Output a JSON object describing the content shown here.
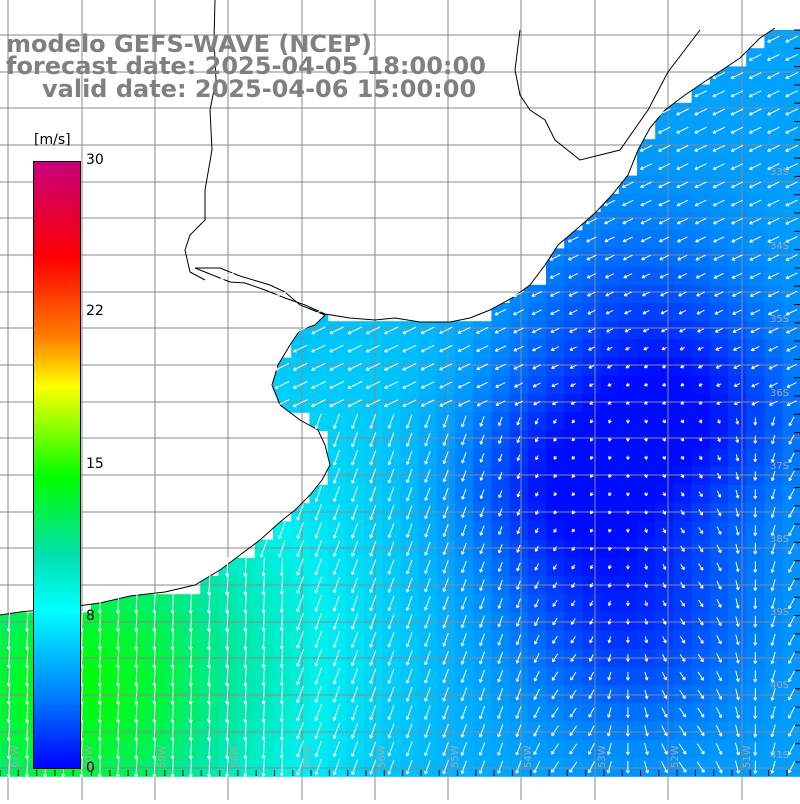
{
  "title": {
    "line1": "modelo GEFS-WAVE (NCEP)",
    "line2": "forecast date: 2025-04-05 18:00:00",
    "line3": "valid date: 2025-04-06 15:00:00"
  },
  "colorbar": {
    "unit": "[m/s]",
    "ticks": [
      "30",
      "22",
      "15",
      "8",
      "0"
    ],
    "ticks_values": [
      30,
      22,
      15,
      8,
      0
    ],
    "colors": [
      "#0000ff",
      "#0080ff",
      "#00ffff",
      "#00e0b0",
      "#00ff00",
      "#ffff00",
      "#ff8000",
      "#ff0000",
      "#c8007c"
    ]
  },
  "map": {
    "field": "wind speed",
    "lon_labels": [
      "61W",
      "60W",
      "59W",
      "58W",
      "57W",
      "56W",
      "55W",
      "54W",
      "53W",
      "52W",
      "51W"
    ],
    "lat_labels": [
      "33S",
      "34S",
      "35S",
      "36S",
      "37S",
      "38S",
      "39S",
      "40S",
      "41S"
    ],
    "land_color": "#ffffff",
    "coast_color": "#000000",
    "grid_color": "#8a8a8a",
    "arrow_color": "#ffffff"
  }
}
